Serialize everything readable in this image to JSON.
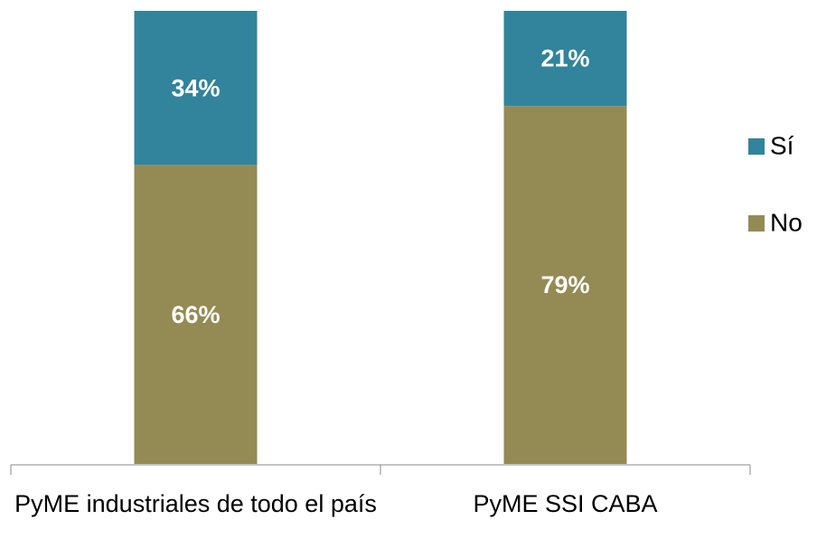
{
  "chart_data": {
    "type": "bar",
    "stacked": true,
    "categories": [
      "PyME industriales de todo el país",
      "PyME SSI CABA"
    ],
    "series": [
      {
        "name": "Sí",
        "color": "#31849b",
        "values": [
          34,
          21
        ],
        "value_labels": [
          "34%",
          "21%"
        ]
      },
      {
        "name": "No",
        "color": "#948a54",
        "values": [
          66,
          79
        ],
        "value_labels": [
          "66%",
          "79%"
        ]
      }
    ],
    "ylim": [
      0,
      100
    ],
    "legend": "right"
  }
}
